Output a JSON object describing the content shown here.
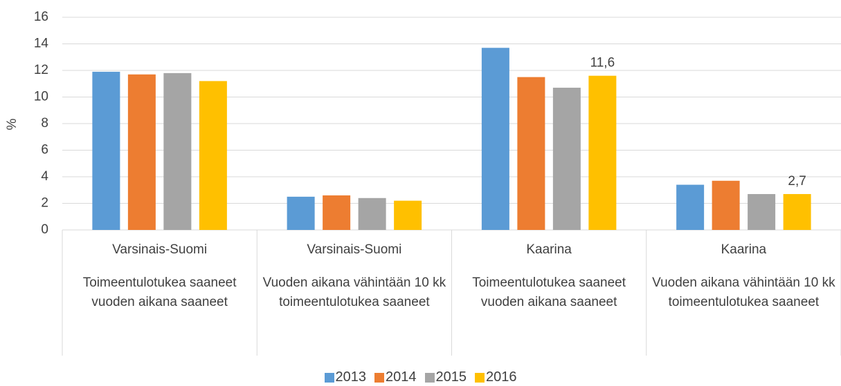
{
  "chart_data": {
    "type": "bar",
    "y_label": "%",
    "categories": [
      "Varsinais-Suomi",
      "Varsinais-Suomi",
      "Kaarina",
      "Kaarina"
    ],
    "subcategories": [
      "Toimeentulotukea saaneet vuoden aikana saaneet",
      "Vuoden aikana vähintään 10 kk toimeentulotukea saaneet",
      "Toimeentulotukea saaneet vuoden aikana saaneet",
      "Vuoden aikana vähintään 10 kk toimeentulotukea saaneet"
    ],
    "series": [
      {
        "name": "2013",
        "color": "#5b9bd5",
        "values": [
          11.9,
          2.5,
          13.7,
          3.4
        ]
      },
      {
        "name": "2014",
        "color": "#ed7d31",
        "values": [
          11.7,
          2.6,
          11.5,
          3.7
        ]
      },
      {
        "name": "2015",
        "color": "#a5a5a5",
        "values": [
          11.8,
          2.4,
          10.7,
          2.7
        ]
      },
      {
        "name": "2016",
        "color": "#ffc000",
        "values": [
          11.2,
          2.2,
          11.6,
          2.7
        ],
        "value_labels": [
          null,
          null,
          "11,6",
          "2,7"
        ]
      }
    ],
    "ylim": [
      0,
      16
    ],
    "yticks": [
      0,
      2,
      4,
      6,
      8,
      10,
      12,
      14,
      16
    ],
    "grid": true,
    "legend": "bottom"
  }
}
